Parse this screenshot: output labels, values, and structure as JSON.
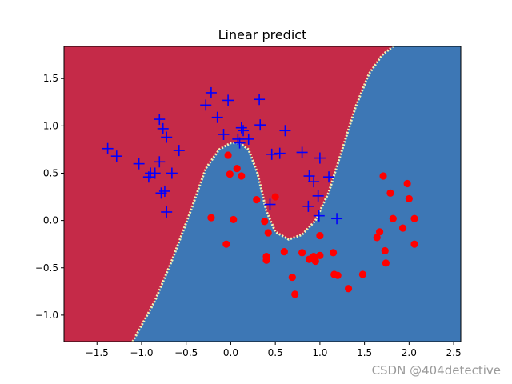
{
  "chart_data": {
    "type": "scatter",
    "title": "Linear predict",
    "xlabel": "",
    "ylabel": "",
    "xlim": [
      -1.87,
      2.58
    ],
    "ylim": [
      -1.28,
      1.84
    ],
    "xticks": [
      -1.5,
      -1.0,
      -0.5,
      0.0,
      0.5,
      1.0,
      1.5,
      2.0,
      2.5
    ],
    "xtick_labels": [
      "−1.5",
      "−1.0",
      "−0.5",
      "0.0",
      "0.5",
      "1.0",
      "1.5",
      "2.0",
      "2.5"
    ],
    "yticks": [
      -1.0,
      -0.5,
      0.0,
      0.5,
      1.0,
      1.5
    ],
    "ytick_labels": [
      "−1.0",
      "−0.5",
      "0.0",
      "0.5",
      "1.0",
      "1.5"
    ],
    "grid": false,
    "background_regions": {
      "upper_color": "#c52a48",
      "lower_color": "#3d77b5",
      "boundary_points": [
        [
          -1.1,
          -1.28
        ],
        [
          -0.85,
          -0.85
        ],
        [
          -0.65,
          -0.4
        ],
        [
          -0.45,
          0.1
        ],
        [
          -0.28,
          0.55
        ],
        [
          -0.13,
          0.75
        ],
        [
          0.0,
          0.82
        ],
        [
          0.1,
          0.82
        ],
        [
          0.2,
          0.75
        ],
        [
          0.3,
          0.5
        ],
        [
          0.4,
          0.1
        ],
        [
          0.5,
          -0.12
        ],
        [
          0.65,
          -0.2
        ],
        [
          0.8,
          -0.15
        ],
        [
          0.95,
          0.0
        ],
        [
          1.1,
          0.3
        ],
        [
          1.25,
          0.75
        ],
        [
          1.4,
          1.2
        ],
        [
          1.55,
          1.55
        ],
        [
          1.7,
          1.75
        ],
        [
          1.82,
          1.84
        ]
      ]
    },
    "series": [
      {
        "marker": "+",
        "color": "#0000ff",
        "points": [
          [
            -1.38,
            0.76
          ],
          [
            -1.28,
            0.68
          ],
          [
            -1.03,
            0.6
          ],
          [
            -0.92,
            0.46
          ],
          [
            -0.9,
            0.5
          ],
          [
            -0.85,
            0.5
          ],
          [
            -0.8,
            1.07
          ],
          [
            -0.76,
            0.97
          ],
          [
            -0.72,
            0.88
          ],
          [
            -0.78,
            0.29
          ],
          [
            -0.74,
            0.31
          ],
          [
            -0.72,
            0.09
          ],
          [
            -0.66,
            0.5
          ],
          [
            -0.58,
            0.74
          ],
          [
            -0.8,
            0.62
          ],
          [
            -0.28,
            1.22
          ],
          [
            -0.22,
            1.35
          ],
          [
            -0.15,
            1.09
          ],
          [
            -0.08,
            0.91
          ],
          [
            -0.03,
            1.27
          ],
          [
            0.08,
            0.86
          ],
          [
            0.1,
            0.82
          ],
          [
            0.12,
            0.98
          ],
          [
            0.14,
            0.95
          ],
          [
            0.2,
            0.86
          ],
          [
            0.32,
            1.28
          ],
          [
            0.33,
            1.01
          ],
          [
            0.44,
            0.17
          ],
          [
            0.46,
            0.7
          ],
          [
            0.55,
            0.71
          ],
          [
            0.61,
            0.95
          ],
          [
            0.8,
            0.72
          ],
          [
            0.88,
            0.47
          ],
          [
            0.87,
            0.15
          ],
          [
            0.93,
            0.41
          ],
          [
            0.98,
            0.26
          ],
          [
            0.99,
            0.05
          ],
          [
            1.0,
            0.66
          ],
          [
            1.1,
            0.46
          ],
          [
            1.19,
            0.02
          ]
        ]
      },
      {
        "marker": "o",
        "color": "#ff0000",
        "points": [
          [
            -0.22,
            0.03
          ],
          [
            -0.05,
            -0.25
          ],
          [
            -0.03,
            0.69
          ],
          [
            -0.01,
            0.49
          ],
          [
            0.03,
            0.01
          ],
          [
            0.07,
            0.55
          ],
          [
            0.12,
            0.47
          ],
          [
            0.29,
            0.22
          ],
          [
            0.38,
            -0.01
          ],
          [
            0.4,
            -0.38
          ],
          [
            0.4,
            -0.42
          ],
          [
            0.42,
            -0.13
          ],
          [
            0.5,
            0.25
          ],
          [
            0.6,
            -0.33
          ],
          [
            0.69,
            -0.6
          ],
          [
            0.72,
            -0.78
          ],
          [
            0.8,
            -0.34
          ],
          [
            0.88,
            -0.41
          ],
          [
            0.93,
            -0.38
          ],
          [
            0.95,
            -0.43
          ],
          [
            1.0,
            -0.37
          ],
          [
            1.0,
            -0.16
          ],
          [
            1.15,
            -0.34
          ],
          [
            1.16,
            -0.57
          ],
          [
            1.2,
            -0.58
          ],
          [
            1.32,
            -0.72
          ],
          [
            1.48,
            -0.57
          ],
          [
            1.64,
            -0.18
          ],
          [
            1.67,
            -0.12
          ],
          [
            1.71,
            0.47
          ],
          [
            1.73,
            -0.32
          ],
          [
            1.74,
            -0.45
          ],
          [
            1.79,
            0.29
          ],
          [
            1.82,
            0.02
          ],
          [
            1.93,
            -0.08
          ],
          [
            1.98,
            0.39
          ],
          [
            2.0,
            0.23
          ],
          [
            2.06,
            0.02
          ],
          [
            2.06,
            -0.25
          ]
        ]
      }
    ]
  },
  "watermark": "CSDN @404detective"
}
